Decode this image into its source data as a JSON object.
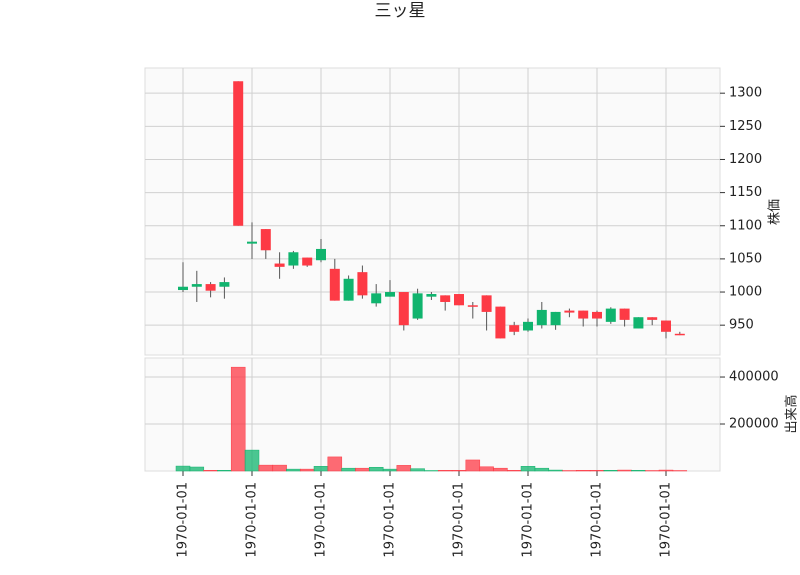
{
  "chart_data": {
    "type": "candlestick",
    "title": "三ッ星",
    "ylabel": "株価",
    "volume_label": "出来高",
    "categories": [
      "1970-01-01",
      null,
      null,
      null,
      null,
      "1970-01-01",
      null,
      null,
      null,
      null,
      "1970-01-01",
      null,
      null,
      null,
      null,
      "1970-01-01",
      null,
      null,
      null,
      null,
      "1970-01-01",
      null,
      null,
      null,
      null,
      "1970-01-01",
      null,
      null,
      null,
      null,
      "1970-01-01",
      null,
      null,
      null,
      null,
      "1970-01-01",
      null
    ],
    "open": [
      1003,
      1008,
      1012,
      1008,
      1318,
      1073,
      1095,
      1043,
      1040,
      1052,
      1048,
      1035,
      987,
      1030,
      983,
      993,
      1000,
      960,
      993,
      995,
      997,
      980,
      995,
      978,
      950,
      942,
      950,
      950,
      972,
      972,
      970,
      955,
      975,
      945,
      962,
      957,
      937
    ],
    "high": [
      1045,
      1032,
      1015,
      1022,
      1318,
      1105,
      1095,
      1060,
      1062,
      1052,
      1080,
      1050,
      1025,
      1040,
      1012,
      1018,
      1000,
      1005,
      1000,
      995,
      997,
      985,
      995,
      978,
      955,
      960,
      985,
      970,
      975,
      972,
      972,
      977,
      975,
      962,
      962,
      957,
      940
    ],
    "low": [
      1000,
      985,
      992,
      990,
      1100,
      1050,
      1050,
      1020,
      1035,
      1038,
      1045,
      987,
      987,
      990,
      978,
      993,
      942,
      958,
      988,
      972,
      980,
      960,
      942,
      930,
      935,
      940,
      945,
      943,
      962,
      948,
      948,
      952,
      948,
      945,
      950,
      930,
      935
    ],
    "close": [
      1008,
      1012,
      1002,
      1015,
      1100,
      1076,
      1063,
      1038,
      1060,
      1040,
      1065,
      987,
      1020,
      995,
      998,
      1000,
      950,
      998,
      997,
      985,
      980,
      978,
      970,
      930,
      940,
      955,
      973,
      970,
      969,
      960,
      960,
      975,
      958,
      962,
      958,
      940,
      936
    ],
    "volume": [
      21000,
      17000,
      3000,
      3000,
      442000,
      89000,
      25000,
      25000,
      8000,
      8000,
      20000,
      60000,
      12000,
      12000,
      16000,
      8000,
      24000,
      10000,
      2000,
      3000,
      3000,
      47000,
      18000,
      12000,
      3000,
      20000,
      12000,
      4000,
      2000,
      3000,
      3000,
      3000,
      4000,
      3000,
      2000,
      4000,
      2000
    ],
    "up_color": "#10b46e",
    "down_color": "#fd3a45",
    "ylim": [
      905,
      1338
    ],
    "yticks": [
      950,
      1000,
      1050,
      1100,
      1150,
      1200,
      1250,
      1300
    ],
    "volume_ylim": [
      0,
      481000
    ],
    "volume_yticks": [
      200000,
      400000
    ],
    "grid": true
  }
}
